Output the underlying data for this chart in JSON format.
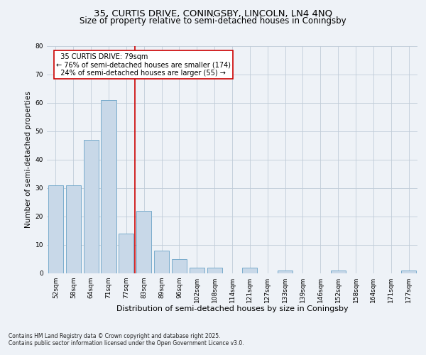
{
  "title1": "35, CURTIS DRIVE, CONINGSBY, LINCOLN, LN4 4NQ",
  "title2": "Size of property relative to semi-detached houses in Coningsby",
  "xlabel": "Distribution of semi-detached houses by size in Coningsby",
  "ylabel": "Number of semi-detached properties",
  "categories": [
    "52sqm",
    "58sqm",
    "64sqm",
    "71sqm",
    "77sqm",
    "83sqm",
    "89sqm",
    "96sqm",
    "102sqm",
    "108sqm",
    "114sqm",
    "121sqm",
    "127sqm",
    "133sqm",
    "139sqm",
    "146sqm",
    "152sqm",
    "158sqm",
    "164sqm",
    "171sqm",
    "177sqm"
  ],
  "values": [
    31,
    31,
    47,
    61,
    14,
    22,
    8,
    5,
    2,
    2,
    0,
    2,
    0,
    1,
    0,
    0,
    1,
    0,
    0,
    0,
    1
  ],
  "bar_color": "#c8d8e8",
  "bar_edge_color": "#7aaccc",
  "vline_x": 4.5,
  "vline_label": "35 CURTIS DRIVE: 79sqm",
  "pct_smaller": "76%",
  "n_smaller": 174,
  "pct_larger": "24%",
  "n_larger": 55,
  "annotation_box_color": "#ffffff",
  "annotation_box_edge": "#cc0000",
  "vline_color": "#cc0000",
  "ylim": [
    0,
    80
  ],
  "yticks": [
    0,
    10,
    20,
    30,
    40,
    50,
    60,
    70,
    80
  ],
  "footnote1": "Contains HM Land Registry data © Crown copyright and database right 2025.",
  "footnote2": "Contains public sector information licensed under the Open Government Licence v3.0.",
  "bg_color": "#eef2f7",
  "title1_fontsize": 9.5,
  "title2_fontsize": 8.5,
  "xlabel_fontsize": 8,
  "ylabel_fontsize": 7.5,
  "tick_fontsize": 6.5,
  "annot_fontsize": 7,
  "footnote_fontsize": 5.5
}
